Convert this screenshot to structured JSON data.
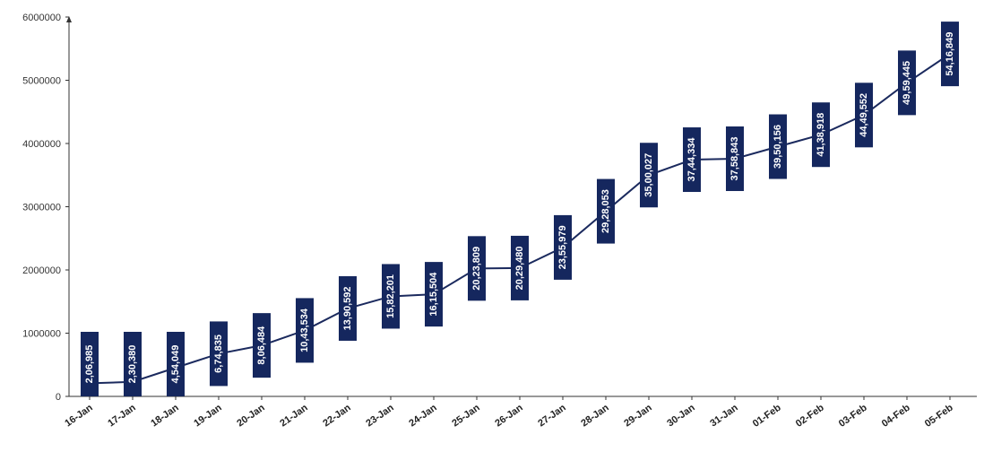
{
  "chart_data": {
    "type": "line",
    "categories": [
      "16-Jan",
      "17-Jan",
      "18-Jan",
      "19-Jan",
      "20-Jan",
      "21-Jan",
      "22-Jan",
      "23-Jan",
      "24-Jan",
      "25-Jan",
      "26-Jan",
      "27-Jan",
      "28-Jan",
      "29-Jan",
      "30-Jan",
      "31-Jan",
      "01-Feb",
      "02-Feb",
      "03-Feb",
      "04-Feb",
      "05-Feb"
    ],
    "values": [
      206985,
      230380,
      454049,
      674835,
      806484,
      1043534,
      1390592,
      1582201,
      1615504,
      2023809,
      2029480,
      2355979,
      2928053,
      3500027,
      3744334,
      3758843,
      3950156,
      4138918,
      4449552,
      4959445,
      5416849
    ],
    "data_labels": [
      "2,06,985",
      "2,30,380",
      "4,54,049",
      "6,74,835",
      "8,06,484",
      "10,43,534",
      "13,90,592",
      "15,82,201",
      "16,15,504",
      "20,23,809",
      "20,29,480",
      "23,55,979",
      "29,28,053",
      "35,00,027",
      "37,44,334",
      "37,58,843",
      "39,50,156",
      "41,38,918",
      "44,49,552",
      "49,59,445",
      "54,16,849"
    ],
    "y_ticks": [
      "0",
      "1000000",
      "2000000",
      "3000000",
      "4000000",
      "5000000",
      "6000000"
    ],
    "ylim": [
      0,
      6000000
    ],
    "title": "",
    "xlabel": "",
    "ylabel": "",
    "grid": false,
    "legend": "none",
    "colors": {
      "line": "#1b2a5e",
      "label_box": "#15275e",
      "label_text": "#ffffff",
      "axis": "#333333"
    }
  }
}
